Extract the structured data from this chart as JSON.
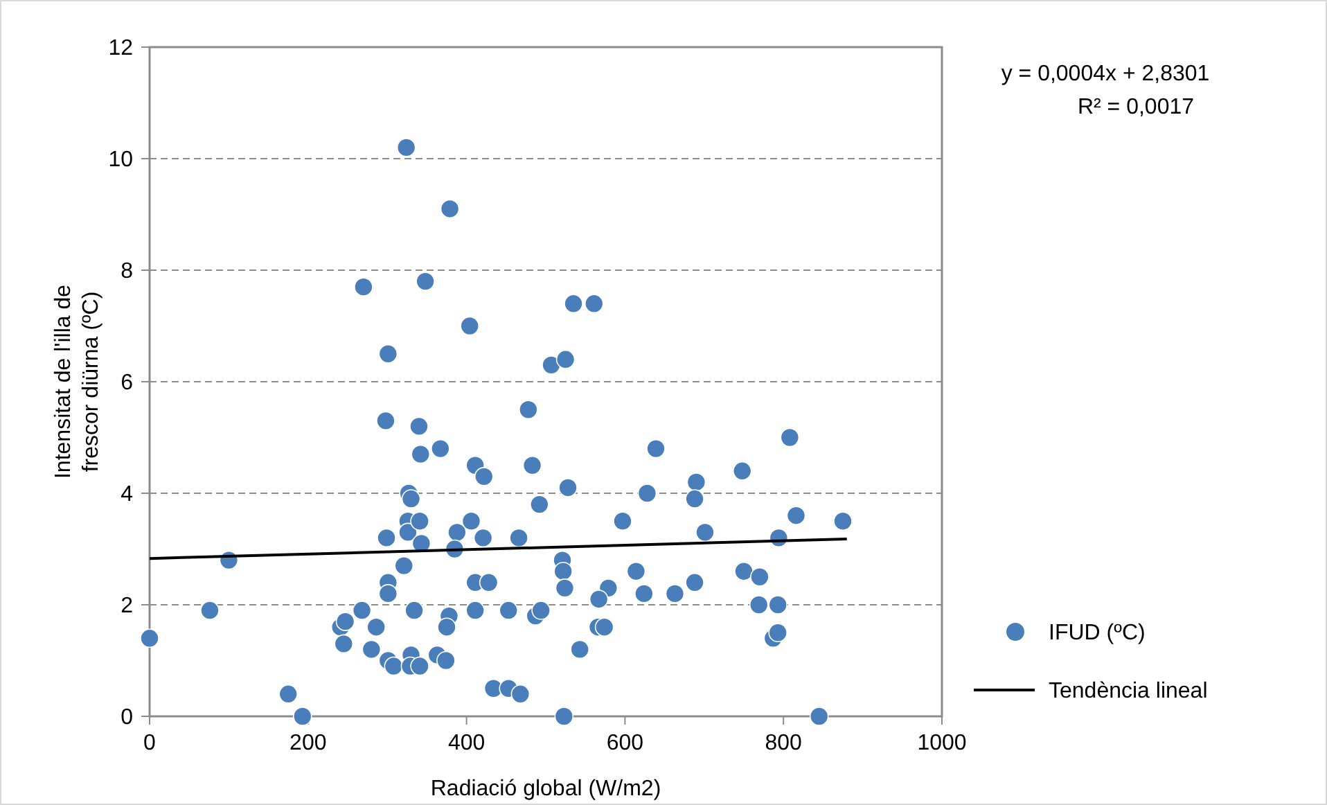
{
  "chart_data": {
    "type": "scatter",
    "xlabel": "Radiació global (W/m2)",
    "ylabel": "Intensitat de l'illa de frescor diürna (ºC)",
    "xlim": [
      0,
      1000
    ],
    "xticks": [
      0,
      200,
      400,
      600,
      800,
      1000
    ],
    "ylim": [
      0,
      12
    ],
    "yticks": [
      0,
      2,
      4,
      6,
      8,
      10,
      12
    ],
    "grid": "y",
    "legend": "right",
    "annotations": [
      "y = 0,0004x + 2,8301",
      "R² = 0,0017"
    ],
    "series": [
      {
        "name": "IFUD (ºC)",
        "color": "#4a7ebb",
        "marker": "circle",
        "x": [
          0,
          76,
          100,
          175,
          193,
          241,
          247,
          245,
          268,
          286,
          280,
          299,
          301,
          301,
          321,
          301,
          308,
          326,
          326,
          327,
          330,
          341,
          343,
          334,
          330,
          329,
          341,
          363,
          374,
          378,
          375,
          388,
          385,
          406,
          421,
          411,
          428,
          411,
          434,
          453,
          468,
          453,
          466,
          487,
          494,
          521,
          522,
          524,
          523,
          543,
          528,
          492,
          411,
          422,
          483,
          324,
          379,
          270,
          348,
          404,
          535,
          301,
          507,
          525,
          478,
          298,
          340,
          367,
          342,
          561,
          639,
          628,
          690,
          688,
          748,
          808,
          597,
          701,
          816,
          875,
          794,
          579,
          567,
          614,
          624,
          663,
          688,
          750,
          770,
          769,
          793,
          566,
          574,
          787,
          793,
          845
        ],
        "values": [
          1.4,
          1.9,
          2.8,
          0.4,
          0,
          1.6,
          1.7,
          1.3,
          1.9,
          1.6,
          1.2,
          3.2,
          2.4,
          2.2,
          2.7,
          1.0,
          0.9,
          3.5,
          3.3,
          4.0,
          3.9,
          3.5,
          3.1,
          1.9,
          1.1,
          0.9,
          0.9,
          1.1,
          1.0,
          1.8,
          1.6,
          3.3,
          3.0,
          3.5,
          3.2,
          2.4,
          2.4,
          1.9,
          0.5,
          0.5,
          0.4,
          1.9,
          3.2,
          1.8,
          1.9,
          2.8,
          2.6,
          2.3,
          0,
          1.2,
          4.1,
          3.8,
          4.5,
          4.3,
          4.5,
          10.2,
          9.1,
          7.7,
          7.8,
          7.0,
          7.4,
          6.5,
          6.3,
          6.4,
          5.5,
          5.3,
          5.2,
          4.8,
          4.7,
          7.4,
          4.8,
          4.0,
          4.2,
          3.9,
          4.4,
          5.0,
          3.5,
          3.3,
          3.6,
          3.5,
          3.2,
          2.3,
          2.1,
          2.6,
          2.2,
          2.2,
          2.4,
          2.6,
          2.5,
          2.0,
          2.0,
          1.6,
          1.6,
          1.4,
          1.5,
          0
        ]
      },
      {
        "name": "Tendència lineal",
        "color": "#000000",
        "type": "line",
        "line_style": "solid",
        "marker": "none",
        "x": [
          0,
          880
        ],
        "values": [
          2.83,
          3.18
        ]
      }
    ]
  }
}
